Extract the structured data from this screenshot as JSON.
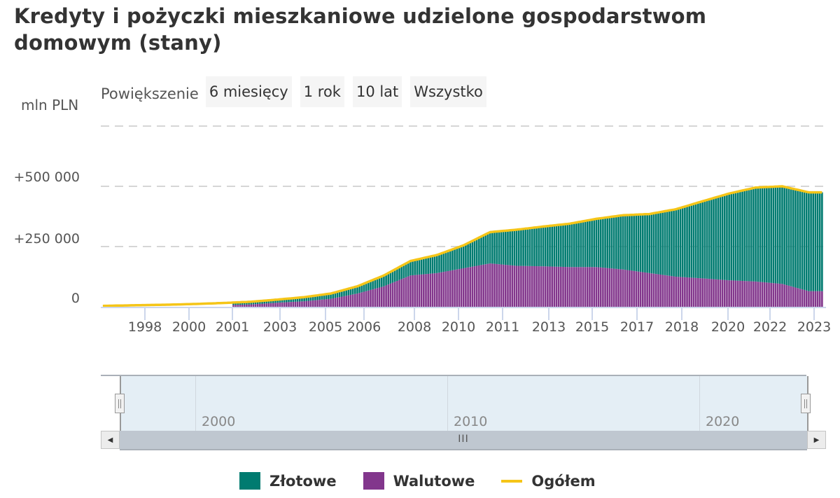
{
  "title": "Kredyty i pożyczki mieszkaniowe udzielone gospodarstwom domowym (stany)",
  "zoom": {
    "label": "Powiększenie",
    "buttons": [
      "6 miesięcy",
      "1 rok",
      "10 lat",
      "Wszystko"
    ]
  },
  "y_axis": {
    "unit": "mln PLN",
    "ticks": [
      "0",
      "+250 000",
      "+500 000"
    ]
  },
  "x_axis": {
    "ticks": [
      "1998",
      "2000",
      "2001",
      "2003",
      "2005",
      "2006",
      "2008",
      "2010",
      "2011",
      "2013",
      "2015",
      "2017",
      "2018",
      "2020",
      "2022",
      "2023"
    ]
  },
  "navigator": {
    "labels": [
      "2000",
      "2010",
      "2020"
    ],
    "scroll_grip": "III"
  },
  "legend": [
    {
      "label": "Złotowe",
      "color": "#007b70",
      "type": "bar"
    },
    {
      "label": "Walutowe",
      "color": "#82368c",
      "type": "bar"
    },
    {
      "label": "Ogółem",
      "color": "#f5c518",
      "type": "line"
    }
  ],
  "colors": {
    "zlotowe": "#007b70",
    "walutowe": "#82368c",
    "ogolem": "#f5c518",
    "grid": "#d6d6d6",
    "navigator_bg": "#e4eef5",
    "scrollbar": "#bfc7d0"
  },
  "chart_data": {
    "type": "bar",
    "title": "Kredyty i pożyczki mieszkaniowe udzielone gospodarstwom domowym (stany)",
    "xlabel": "",
    "ylabel": "mln PLN",
    "ylim": [
      0,
      750000
    ],
    "stacked": true,
    "grid": true,
    "legend_position": "bottom",
    "x": [
      1996,
      1997,
      1998,
      1999,
      2000,
      2001,
      2002,
      2003,
      2004,
      2005,
      2006,
      2007,
      2008,
      2009,
      2010,
      2011,
      2012,
      2013,
      2014,
      2015,
      2016,
      2017,
      2018,
      2019,
      2020,
      2021,
      2022,
      2023
    ],
    "series": [
      {
        "name": "Złotowe",
        "type": "bar",
        "color": "#007b70",
        "values": [
          2000,
          3000,
          4000,
          5000,
          7000,
          9000,
          11000,
          13000,
          17000,
          22000,
          30000,
          45000,
          60000,
          75000,
          95000,
          130000,
          150000,
          165000,
          180000,
          200000,
          225000,
          245000,
          280000,
          320000,
          360000,
          390000,
          405000,
          410000
        ]
      },
      {
        "name": "Walutowe",
        "type": "bar",
        "color": "#82368c",
        "values": [
          1000,
          2000,
          3000,
          4000,
          5000,
          7000,
          10000,
          17000,
          23000,
          33000,
          55000,
          85000,
          130000,
          140000,
          160000,
          180000,
          170000,
          168000,
          165000,
          165000,
          155000,
          140000,
          125000,
          118000,
          110000,
          105000,
          95000,
          65000
        ]
      },
      {
        "name": "Ogółem",
        "type": "line",
        "color": "#f5c518",
        "values": [
          3000,
          5000,
          7000,
          9000,
          12000,
          16000,
          21000,
          30000,
          40000,
          55000,
          85000,
          130000,
          190000,
          215000,
          255000,
          310000,
          320000,
          333000,
          345000,
          365000,
          380000,
          385000,
          405000,
          438000,
          470000,
          495000,
          500000,
          475000
        ]
      }
    ]
  }
}
